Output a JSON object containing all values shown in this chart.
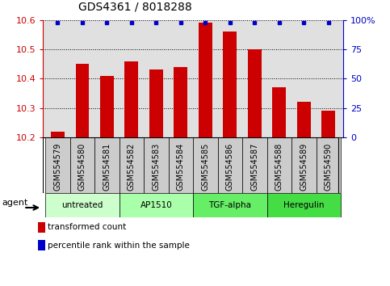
{
  "title": "GDS4361 / 8018288",
  "samples": [
    "GSM554579",
    "GSM554580",
    "GSM554581",
    "GSM554582",
    "GSM554583",
    "GSM554584",
    "GSM554585",
    "GSM554586",
    "GSM554587",
    "GSM554588",
    "GSM554589",
    "GSM554590"
  ],
  "bar_values": [
    10.22,
    10.45,
    10.41,
    10.46,
    10.43,
    10.44,
    10.59,
    10.56,
    10.5,
    10.37,
    10.32,
    10.29
  ],
  "bar_color": "#cc0000",
  "dot_color": "#0000cc",
  "ylim_left": [
    10.2,
    10.6
  ],
  "ylim_right": [
    0,
    100
  ],
  "yticks_left": [
    10.2,
    10.3,
    10.4,
    10.5,
    10.6
  ],
  "yticks_right": [
    0,
    25,
    50,
    75,
    100
  ],
  "ytick_labels_right": [
    "0",
    "25",
    "50",
    "75",
    "100%"
  ],
  "groups": [
    {
      "label": "untreated",
      "start": 0,
      "end": 2,
      "color": "#ccffcc"
    },
    {
      "label": "AP1510",
      "start": 3,
      "end": 5,
      "color": "#aaffaa"
    },
    {
      "label": "TGF-alpha",
      "start": 6,
      "end": 8,
      "color": "#66ee66"
    },
    {
      "label": "Heregulin",
      "start": 9,
      "end": 11,
      "color": "#44dd44"
    }
  ],
  "agent_label": "agent",
  "legend_bar_label": "transformed count",
  "legend_dot_label": "percentile rank within the sample",
  "background_color": "#ffffff",
  "plot_bg_color": "#e0e0e0",
  "grid_color": "#000000",
  "title_fontsize": 10,
  "tick_fontsize": 7,
  "bar_width": 0.55,
  "sample_box_color": "#cccccc"
}
